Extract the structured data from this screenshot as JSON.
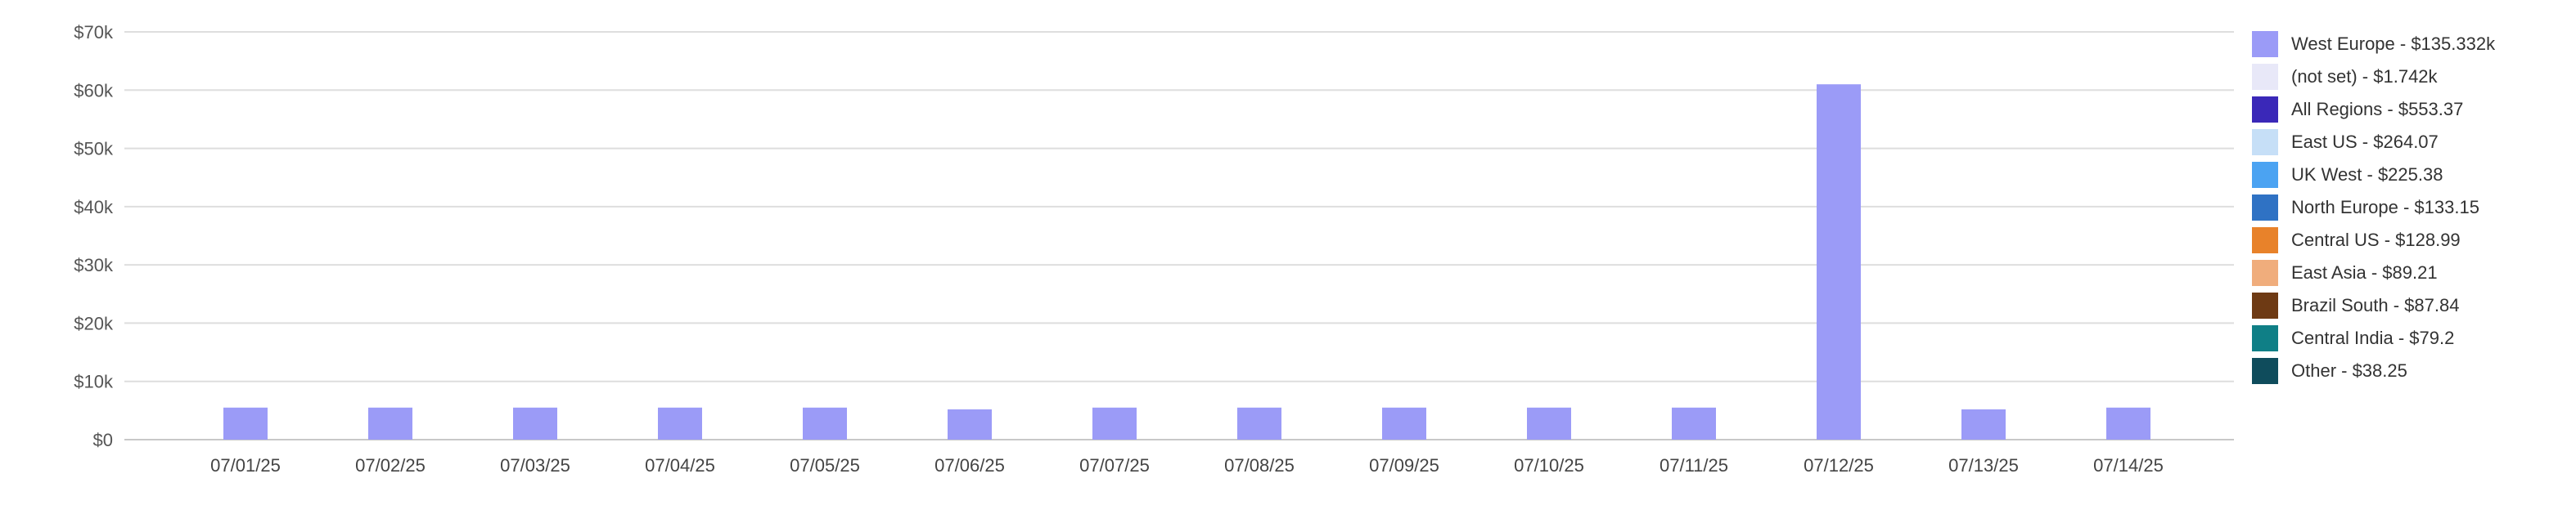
{
  "chart_data": {
    "type": "bar",
    "title": "",
    "xlabel": "",
    "ylabel": "",
    "ylim": [
      0,
      70000
    ],
    "y_ticks": [
      {
        "value": 0,
        "label": "$0"
      },
      {
        "value": 10000,
        "label": "$10k"
      },
      {
        "value": 20000,
        "label": "$20k"
      },
      {
        "value": 30000,
        "label": "$30k"
      },
      {
        "value": 40000,
        "label": "$40k"
      },
      {
        "value": 50000,
        "label": "$50k"
      },
      {
        "value": 60000,
        "label": "$60k"
      },
      {
        "value": 70000,
        "label": "$70k"
      }
    ],
    "grid": true,
    "legend_position": "right",
    "categories": [
      "07/01/25",
      "07/02/25",
      "07/03/25",
      "07/04/25",
      "07/05/25",
      "07/06/25",
      "07/07/25",
      "07/08/25",
      "07/09/25",
      "07/10/25",
      "07/11/25",
      "07/12/25",
      "07/13/25",
      "07/14/25"
    ],
    "series": [
      {
        "name": "West Europe",
        "color": "#9b9bf7",
        "values": [
          5500,
          5500,
          5500,
          5500,
          5500,
          5200,
          5500,
          5500,
          5500,
          5500,
          5500,
          61000,
          5200,
          5500
        ]
      }
    ]
  },
  "legend": [
    {
      "label": "West Europe - $135.332k",
      "color": "#9b9bf7"
    },
    {
      "label": "(not set) - $1.742k",
      "color": "#e8e8f8"
    },
    {
      "label": "All Regions - $553.37",
      "color": "#3a28b8"
    },
    {
      "label": "East US - $264.07",
      "color": "#c6dff7"
    },
    {
      "label": "UK West - $225.38",
      "color": "#4ba3f2"
    },
    {
      "label": "North Europe - $133.15",
      "color": "#2f72c4"
    },
    {
      "label": "Central US - $128.99",
      "color": "#e8822a"
    },
    {
      "label": "East Asia - $89.21",
      "color": "#f0ad7c"
    },
    {
      "label": "Brazil South - $87.84",
      "color": "#6e3a14"
    },
    {
      "label": "Central India - $79.2",
      "color": "#0f7f86"
    },
    {
      "label": "Other - $38.25",
      "color": "#0f4c5c"
    }
  ]
}
